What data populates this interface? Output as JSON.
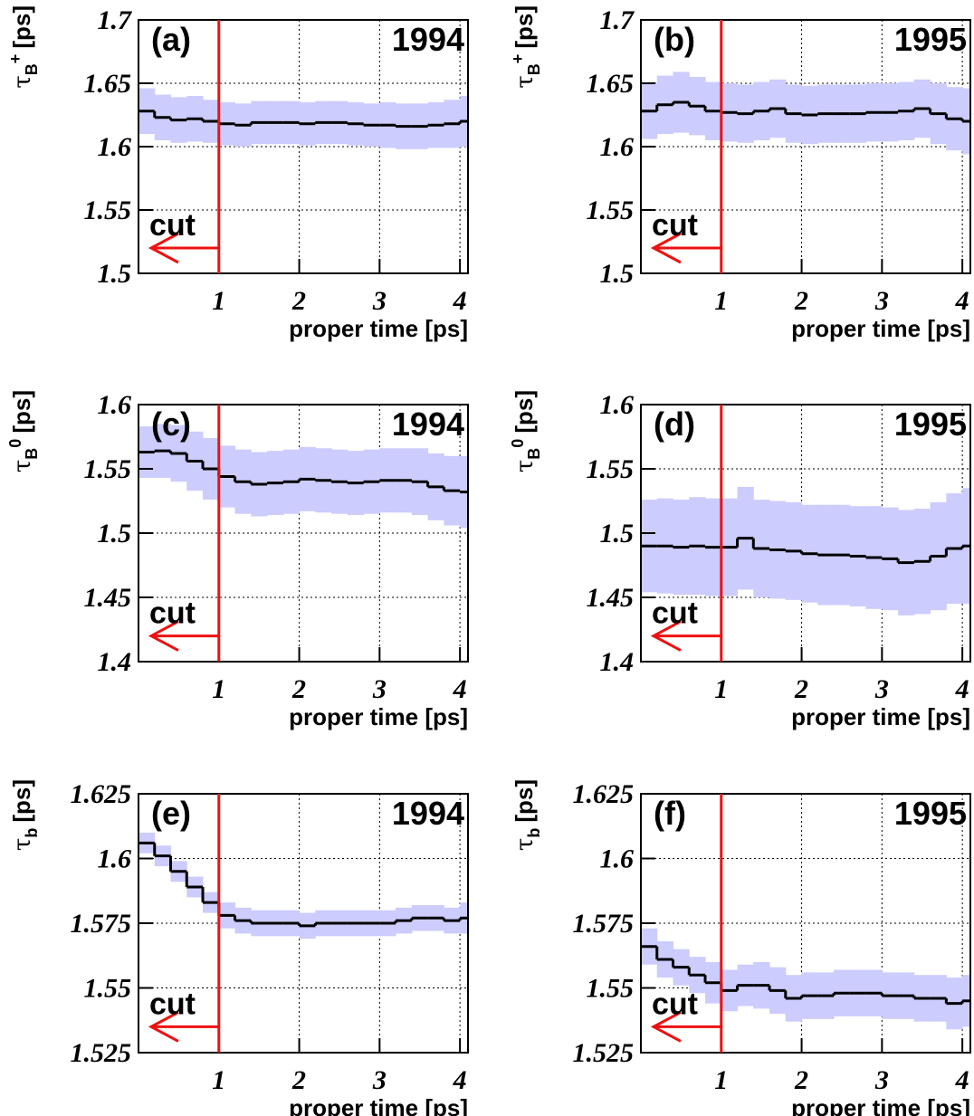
{
  "chart_data": [
    {
      "type": "step",
      "panel_label": "(a)",
      "year": "1994",
      "y_label": {
        "main": "τ",
        "sub": "B",
        "sup": "+",
        "unit": "[ps]"
      },
      "x_label": "proper time [ps]",
      "annotation": "cut",
      "cut_x": 1,
      "cut_color": "#ee1111",
      "x": [
        0,
        0.2,
        0.4,
        0.6,
        0.8,
        1.0,
        1.2,
        1.4,
        1.6,
        1.8,
        2.0,
        2.2,
        2.4,
        2.6,
        2.8,
        3.0,
        3.2,
        3.4,
        3.6,
        3.8,
        4.0
      ],
      "series": [
        {
          "color": "#000000",
          "band_color": "#ccccff",
          "values": [
            1.628,
            1.623,
            1.621,
            1.622,
            1.62,
            1.618,
            1.617,
            1.619,
            1.619,
            1.619,
            1.618,
            1.619,
            1.619,
            1.618,
            1.617,
            1.617,
            1.616,
            1.616,
            1.617,
            1.618,
            1.62
          ],
          "errors": [
            0.018,
            0.018,
            0.018,
            0.018,
            0.017,
            0.017,
            0.017,
            0.017,
            0.017,
            0.017,
            0.017,
            0.017,
            0.017,
            0.017,
            0.017,
            0.018,
            0.018,
            0.018,
            0.018,
            0.019,
            0.02
          ]
        }
      ],
      "xlim": [
        0,
        4.1
      ],
      "xticks": [
        1,
        2,
        3,
        4
      ],
      "ylim": [
        1.5,
        1.7
      ],
      "yticks": [
        1.5,
        1.55,
        1.6,
        1.65,
        1.7
      ],
      "grid": true
    },
    {
      "type": "step",
      "panel_label": "(b)",
      "year": "1995",
      "y_label": {
        "main": "τ",
        "sub": "B",
        "sup": "+",
        "unit": "[ps]"
      },
      "x_label": "proper time [ps]",
      "annotation": "cut",
      "cut_x": 1,
      "cut_color": "#ee1111",
      "x": [
        0,
        0.2,
        0.4,
        0.6,
        0.8,
        1.0,
        1.2,
        1.4,
        1.6,
        1.8,
        2.0,
        2.2,
        2.4,
        2.6,
        2.8,
        3.0,
        3.2,
        3.4,
        3.6,
        3.8,
        4.0
      ],
      "series": [
        {
          "color": "#000000",
          "band_color": "#ccccff",
          "values": [
            1.628,
            1.633,
            1.635,
            1.632,
            1.628,
            1.627,
            1.626,
            1.628,
            1.63,
            1.626,
            1.625,
            1.626,
            1.626,
            1.626,
            1.627,
            1.627,
            1.628,
            1.63,
            1.626,
            1.622,
            1.62
          ],
          "errors": [
            0.022,
            0.023,
            0.024,
            0.023,
            0.023,
            0.023,
            0.023,
            0.023,
            0.023,
            0.023,
            0.023,
            0.023,
            0.023,
            0.023,
            0.023,
            0.023,
            0.023,
            0.023,
            0.024,
            0.025,
            0.026
          ]
        }
      ],
      "xlim": [
        0,
        4.1
      ],
      "xticks": [
        1,
        2,
        3,
        4
      ],
      "ylim": [
        1.5,
        1.7
      ],
      "yticks": [
        1.5,
        1.55,
        1.6,
        1.65,
        1.7
      ],
      "grid": true
    },
    {
      "type": "step",
      "panel_label": "(c)",
      "year": "1994",
      "y_label": {
        "main": "τ",
        "sub": "B",
        "sup": "0",
        "unit": "[ps]"
      },
      "x_label": "proper time [ps]",
      "annotation": "cut",
      "cut_x": 1,
      "cut_color": "#ee1111",
      "x": [
        0,
        0.2,
        0.4,
        0.6,
        0.8,
        1.0,
        1.2,
        1.4,
        1.6,
        1.8,
        2.0,
        2.2,
        2.4,
        2.6,
        2.8,
        3.0,
        3.2,
        3.4,
        3.6,
        3.8,
        4.0
      ],
      "series": [
        {
          "color": "#000000",
          "band_color": "#ccccff",
          "values": [
            1.563,
            1.564,
            1.562,
            1.556,
            1.55,
            1.544,
            1.54,
            1.538,
            1.539,
            1.54,
            1.542,
            1.541,
            1.54,
            1.539,
            1.54,
            1.541,
            1.541,
            1.54,
            1.536,
            1.533,
            1.532
          ],
          "errors": [
            0.02,
            0.021,
            0.022,
            0.023,
            0.024,
            0.024,
            0.025,
            0.025,
            0.025,
            0.025,
            0.025,
            0.025,
            0.025,
            0.025,
            0.025,
            0.025,
            0.025,
            0.026,
            0.026,
            0.027,
            0.028
          ]
        }
      ],
      "xlim": [
        0,
        4.1
      ],
      "xticks": [
        1,
        2,
        3,
        4
      ],
      "ylim": [
        1.4,
        1.6
      ],
      "yticks": [
        1.4,
        1.45,
        1.5,
        1.55,
        1.6
      ],
      "grid": true
    },
    {
      "type": "step",
      "panel_label": "(d)",
      "year": "1995",
      "y_label": {
        "main": "τ",
        "sub": "B",
        "sup": "0",
        "unit": "[ps]"
      },
      "x_label": "proper time [ps]",
      "annotation": "cut",
      "cut_x": 1,
      "cut_color": "#ee1111",
      "x": [
        0,
        0.2,
        0.4,
        0.6,
        0.8,
        1.0,
        1.2,
        1.4,
        1.6,
        1.8,
        2.0,
        2.2,
        2.4,
        2.6,
        2.8,
        3.0,
        3.2,
        3.4,
        3.6,
        3.8,
        4.0
      ],
      "series": [
        {
          "color": "#000000",
          "band_color": "#ccccff",
          "values": [
            1.49,
            1.49,
            1.489,
            1.49,
            1.489,
            1.489,
            1.496,
            1.488,
            1.487,
            1.486,
            1.484,
            1.483,
            1.483,
            1.482,
            1.481,
            1.48,
            1.477,
            1.478,
            1.482,
            1.488,
            1.49
          ],
          "errors": [
            0.036,
            0.037,
            0.037,
            0.038,
            0.038,
            0.038,
            0.04,
            0.038,
            0.038,
            0.038,
            0.038,
            0.039,
            0.039,
            0.039,
            0.04,
            0.04,
            0.041,
            0.041,
            0.042,
            0.043,
            0.045
          ]
        }
      ],
      "xlim": [
        0,
        4.1
      ],
      "xticks": [
        1,
        2,
        3,
        4
      ],
      "ylim": [
        1.4,
        1.6
      ],
      "yticks": [
        1.4,
        1.45,
        1.5,
        1.55,
        1.6
      ],
      "grid": true
    },
    {
      "type": "step",
      "panel_label": "(e)",
      "year": "1994",
      "y_label": {
        "main": "τ",
        "sub": "b",
        "sup": "",
        "unit": "[ps]"
      },
      "x_label": "proper time [ps]",
      "annotation": "cut",
      "cut_x": 1,
      "cut_color": "#ee1111",
      "x": [
        0,
        0.2,
        0.4,
        0.6,
        0.8,
        1.0,
        1.2,
        1.4,
        1.6,
        1.8,
        2.0,
        2.2,
        2.4,
        2.6,
        2.8,
        3.0,
        3.2,
        3.4,
        3.6,
        3.8,
        4.0
      ],
      "series": [
        {
          "color": "#000000",
          "band_color": "#ccccff",
          "values": [
            1.606,
            1.601,
            1.595,
            1.589,
            1.583,
            1.578,
            1.576,
            1.575,
            1.575,
            1.575,
            1.574,
            1.575,
            1.575,
            1.575,
            1.575,
            1.575,
            1.576,
            1.577,
            1.577,
            1.576,
            1.577
          ],
          "errors": [
            0.004,
            0.004,
            0.004,
            0.004,
            0.004,
            0.005,
            0.005,
            0.005,
            0.005,
            0.005,
            0.005,
            0.005,
            0.005,
            0.005,
            0.005,
            0.005,
            0.005,
            0.005,
            0.005,
            0.005,
            0.006
          ]
        }
      ],
      "xlim": [
        0,
        4.1
      ],
      "xticks": [
        1,
        2,
        3,
        4
      ],
      "ylim": [
        1.525,
        1.625
      ],
      "yticks": [
        1.525,
        1.55,
        1.575,
        1.6,
        1.625
      ],
      "grid": true
    },
    {
      "type": "step",
      "panel_label": "(f)",
      "year": "1995",
      "y_label": {
        "main": "τ",
        "sub": "b",
        "sup": "",
        "unit": "[ps]"
      },
      "x_label": "proper time [ps]",
      "annotation": "cut",
      "cut_x": 1,
      "cut_color": "#ee1111",
      "x": [
        0,
        0.2,
        0.4,
        0.6,
        0.8,
        1.0,
        1.2,
        1.4,
        1.6,
        1.8,
        2.0,
        2.2,
        2.4,
        2.6,
        2.8,
        3.0,
        3.2,
        3.4,
        3.6,
        3.8,
        4.0
      ],
      "series": [
        {
          "color": "#000000",
          "band_color": "#ccccff",
          "values": [
            1.566,
            1.561,
            1.558,
            1.555,
            1.552,
            1.549,
            1.551,
            1.551,
            1.549,
            1.546,
            1.547,
            1.547,
            1.548,
            1.548,
            1.548,
            1.547,
            1.547,
            1.546,
            1.546,
            1.544,
            1.545
          ],
          "errors": [
            0.007,
            0.007,
            0.007,
            0.007,
            0.008,
            0.008,
            0.008,
            0.009,
            0.009,
            0.009,
            0.009,
            0.009,
            0.009,
            0.009,
            0.009,
            0.009,
            0.009,
            0.009,
            0.009,
            0.01,
            0.01
          ]
        }
      ],
      "xlim": [
        0,
        4.1
      ],
      "xticks": [
        1,
        2,
        3,
        4
      ],
      "ylim": [
        1.525,
        1.625
      ],
      "yticks": [
        1.525,
        1.55,
        1.575,
        1.6,
        1.625
      ],
      "grid": true
    }
  ]
}
